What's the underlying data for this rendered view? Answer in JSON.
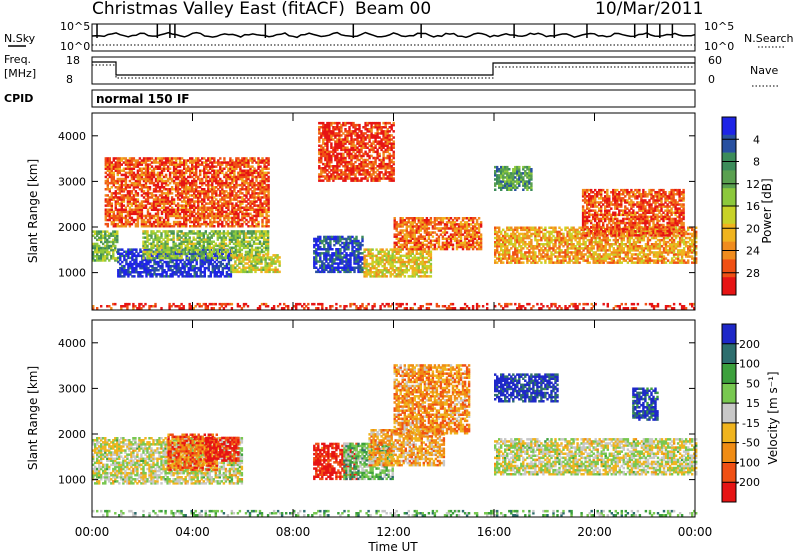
{
  "header": {
    "station": "Christmas Valley East (fitACF)",
    "beam": "Beam 00",
    "date": "10/Mar/2011"
  },
  "summary_panels": {
    "nsky_label": "N.Sky",
    "nsearch_label": "N.Search",
    "nsky_ticks": [
      "10^5",
      "10^0"
    ],
    "freq_label_line1": "Freq.",
    "freq_label_line2": "[MHz]",
    "freq_ticks": [
      "18",
      "8"
    ],
    "nave_label": "Nave",
    "nave_ticks": [
      "60",
      "0"
    ],
    "cpid_label": "CPID",
    "cpid_mode": "normal 150 IF"
  },
  "chart_data": [
    {
      "type": "heatmap",
      "name": "power",
      "xlabel": "Time UT",
      "ylabel": "Slant Range [km]",
      "xlim": [
        0,
        24
      ],
      "ylim": [
        180,
        4500
      ],
      "xticks": [
        "00:00",
        "04:00",
        "08:00",
        "12:00",
        "16:00",
        "20:00",
        "00:00"
      ],
      "yticks": [
        "1000",
        "2000",
        "3000",
        "4000"
      ],
      "colorbar_label": "Power [dB]",
      "colorbar_ticks": [
        "4",
        "8",
        "12",
        "16",
        "20",
        "24",
        "28"
      ],
      "colorbar_colors": [
        "#1e24e6",
        "#2850a0",
        "#3c8c5a",
        "#5aa050",
        "#8cc83c",
        "#c8d228",
        "#f0b41e",
        "#f08c1e",
        "#f05014",
        "#e61414"
      ],
      "regions": [
        {
          "t0": 0.0,
          "t1": 1.0,
          "r0": 1250,
          "r1": 1900,
          "level": 0.6
        },
        {
          "t0": 1.0,
          "t1": 5.5,
          "r0": 900,
          "r1": 1500,
          "level": 0.95
        },
        {
          "t0": 2.0,
          "t1": 7.0,
          "r0": 1300,
          "r1": 1900,
          "level": 0.55
        },
        {
          "t0": 5.5,
          "t1": 7.5,
          "r0": 1000,
          "r1": 1400,
          "level": 0.45
        },
        {
          "t0": 8.8,
          "t1": 10.8,
          "r0": 1000,
          "r1": 1800,
          "level": 0.9
        },
        {
          "t0": 10.8,
          "t1": 13.5,
          "r0": 900,
          "r1": 1500,
          "level": 0.4
        },
        {
          "t0": 12.0,
          "t1": 15.5,
          "r0": 1500,
          "r1": 2200,
          "level": 0.2
        },
        {
          "t0": 16.0,
          "t1": 17.5,
          "r0": 2800,
          "r1": 3300,
          "level": 0.7
        },
        {
          "t0": 16.0,
          "t1": 24.0,
          "r0": 1200,
          "r1": 2000,
          "level": 0.3
        },
        {
          "t0": 19.5,
          "t1": 23.5,
          "r0": 1800,
          "r1": 2800,
          "level": 0.15
        },
        {
          "t0": 0.5,
          "t1": 7.0,
          "r0": 2000,
          "r1": 3500,
          "level": 0.15
        },
        {
          "t0": 9.0,
          "t1": 12.0,
          "r0": 3000,
          "r1": 4300,
          "level": 0.1
        },
        {
          "t0": 0.0,
          "t1": 24.0,
          "r0": 200,
          "r1": 300,
          "level": 0.05
        }
      ]
    },
    {
      "type": "heatmap",
      "name": "velocity",
      "xlabel": "Time UT",
      "ylabel": "Slant Range [km]",
      "xlim": [
        0,
        24
      ],
      "ylim": [
        180,
        4500
      ],
      "xticks": [
        "00:00",
        "04:00",
        "08:00",
        "12:00",
        "16:00",
        "20:00",
        "00:00"
      ],
      "yticks": [
        "1000",
        "2000",
        "3000",
        "4000"
      ],
      "colorbar_label": "Velocity [m s⁻¹]",
      "colorbar_ticks": [
        "200",
        "100",
        "50",
        "15",
        "-15",
        "-50",
        "-100",
        "-200"
      ],
      "colorbar_colors": [
        "#1e28c8",
        "#2d6e6e",
        "#3ca03c",
        "#78c850",
        "#c8c8c8",
        "#f0b41e",
        "#f08c14",
        "#f05014",
        "#e61414"
      ],
      "regions": [
        {
          "t0": 0.0,
          "t1": 6.0,
          "r0": 900,
          "r1": 1900,
          "level": 0.5
        },
        {
          "t0": 3.0,
          "t1": 5.0,
          "r0": 1200,
          "r1": 2000,
          "level": 0.2
        },
        {
          "t0": 4.5,
          "t1": 5.8,
          "r0": 1400,
          "r1": 1900,
          "level": 0.05
        },
        {
          "t0": 8.8,
          "t1": 10.5,
          "r0": 1000,
          "r1": 1800,
          "level": 0.05
        },
        {
          "t0": 10.0,
          "t1": 12.0,
          "r0": 1000,
          "r1": 1800,
          "level": 0.65
        },
        {
          "t0": 11.0,
          "t1": 14.0,
          "r0": 1300,
          "r1": 2100,
          "level": 0.35
        },
        {
          "t0": 12.0,
          "t1": 15.0,
          "r0": 2000,
          "r1": 3500,
          "level": 0.3
        },
        {
          "t0": 16.0,
          "t1": 18.5,
          "r0": 2700,
          "r1": 3300,
          "level": 0.95
        },
        {
          "t0": 16.0,
          "t1": 24.0,
          "r0": 1100,
          "r1": 1900,
          "level": 0.5
        },
        {
          "t0": 21.5,
          "t1": 22.5,
          "r0": 2300,
          "r1": 3000,
          "level": 0.9
        },
        {
          "t0": 0.0,
          "t1": 24.0,
          "r0": 200,
          "r1": 300,
          "level": 0.65
        }
      ]
    }
  ],
  "nsky_series": {
    "spikes_t": [
      0.2,
      2.6,
      3.1,
      3.3,
      6.9,
      10.4,
      13.1,
      16.8,
      18.4,
      19.7,
      21.6,
      22.1,
      22.6,
      23.1
    ]
  }
}
